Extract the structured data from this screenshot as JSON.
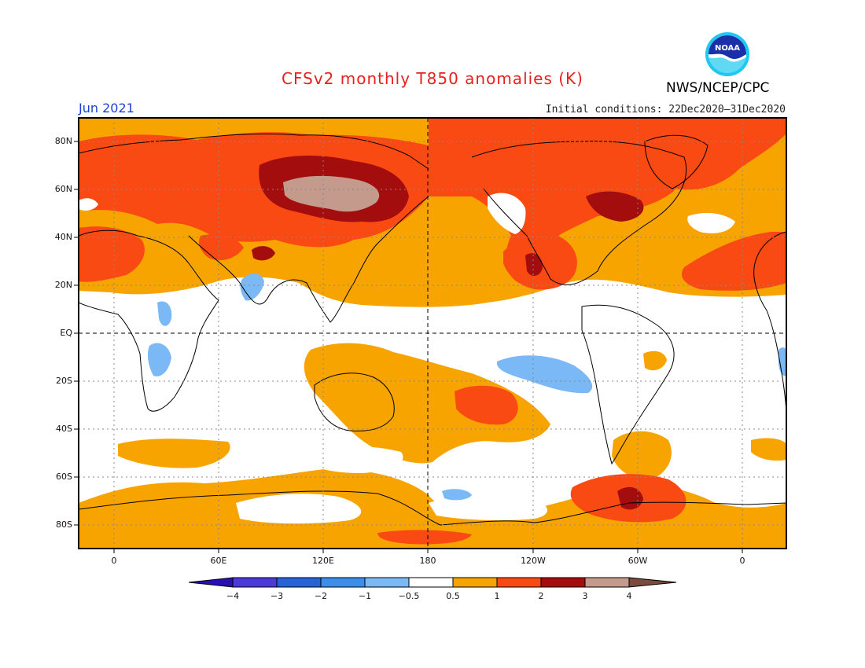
{
  "header": {
    "title": "CFSv2 monthly T850 anomalies (K)",
    "month": "Jun 2021",
    "initial_conditions": "Initial conditions: 22Dec2020–31Dec2020",
    "agency": "NWS/NCEP/CPC",
    "logo_text": "NOAA"
  },
  "axes": {
    "lat_labels": [
      "80N",
      "60N",
      "40N",
      "20N",
      "EQ",
      "20S",
      "40S",
      "60S",
      "80S"
    ],
    "lon_labels": [
      "0",
      "60E",
      "120E",
      "180",
      "120W",
      "60W",
      "0"
    ]
  },
  "colorbar": {
    "labels": [
      "−4",
      "−3",
      "−2",
      "−1",
      "−0.5",
      "0.5",
      "1",
      "2",
      "3",
      "4"
    ],
    "colors": [
      "#2a0fb5",
      "#4a3ad8",
      "#2563d6",
      "#3d8ee8",
      "#7ab9f5",
      "#ffffff",
      "#f7a400",
      "#fa4a14",
      "#a30d0d",
      "#c49a8c",
      "#7a4a3c"
    ]
  },
  "colors": {
    "ocean_neutral": "#ffffff",
    "orange": "#f7a400",
    "red": "#fa4a14",
    "darkred": "#a30d0d",
    "rosy": "#c49a8c",
    "lightblue": "#7ab9f5"
  }
}
